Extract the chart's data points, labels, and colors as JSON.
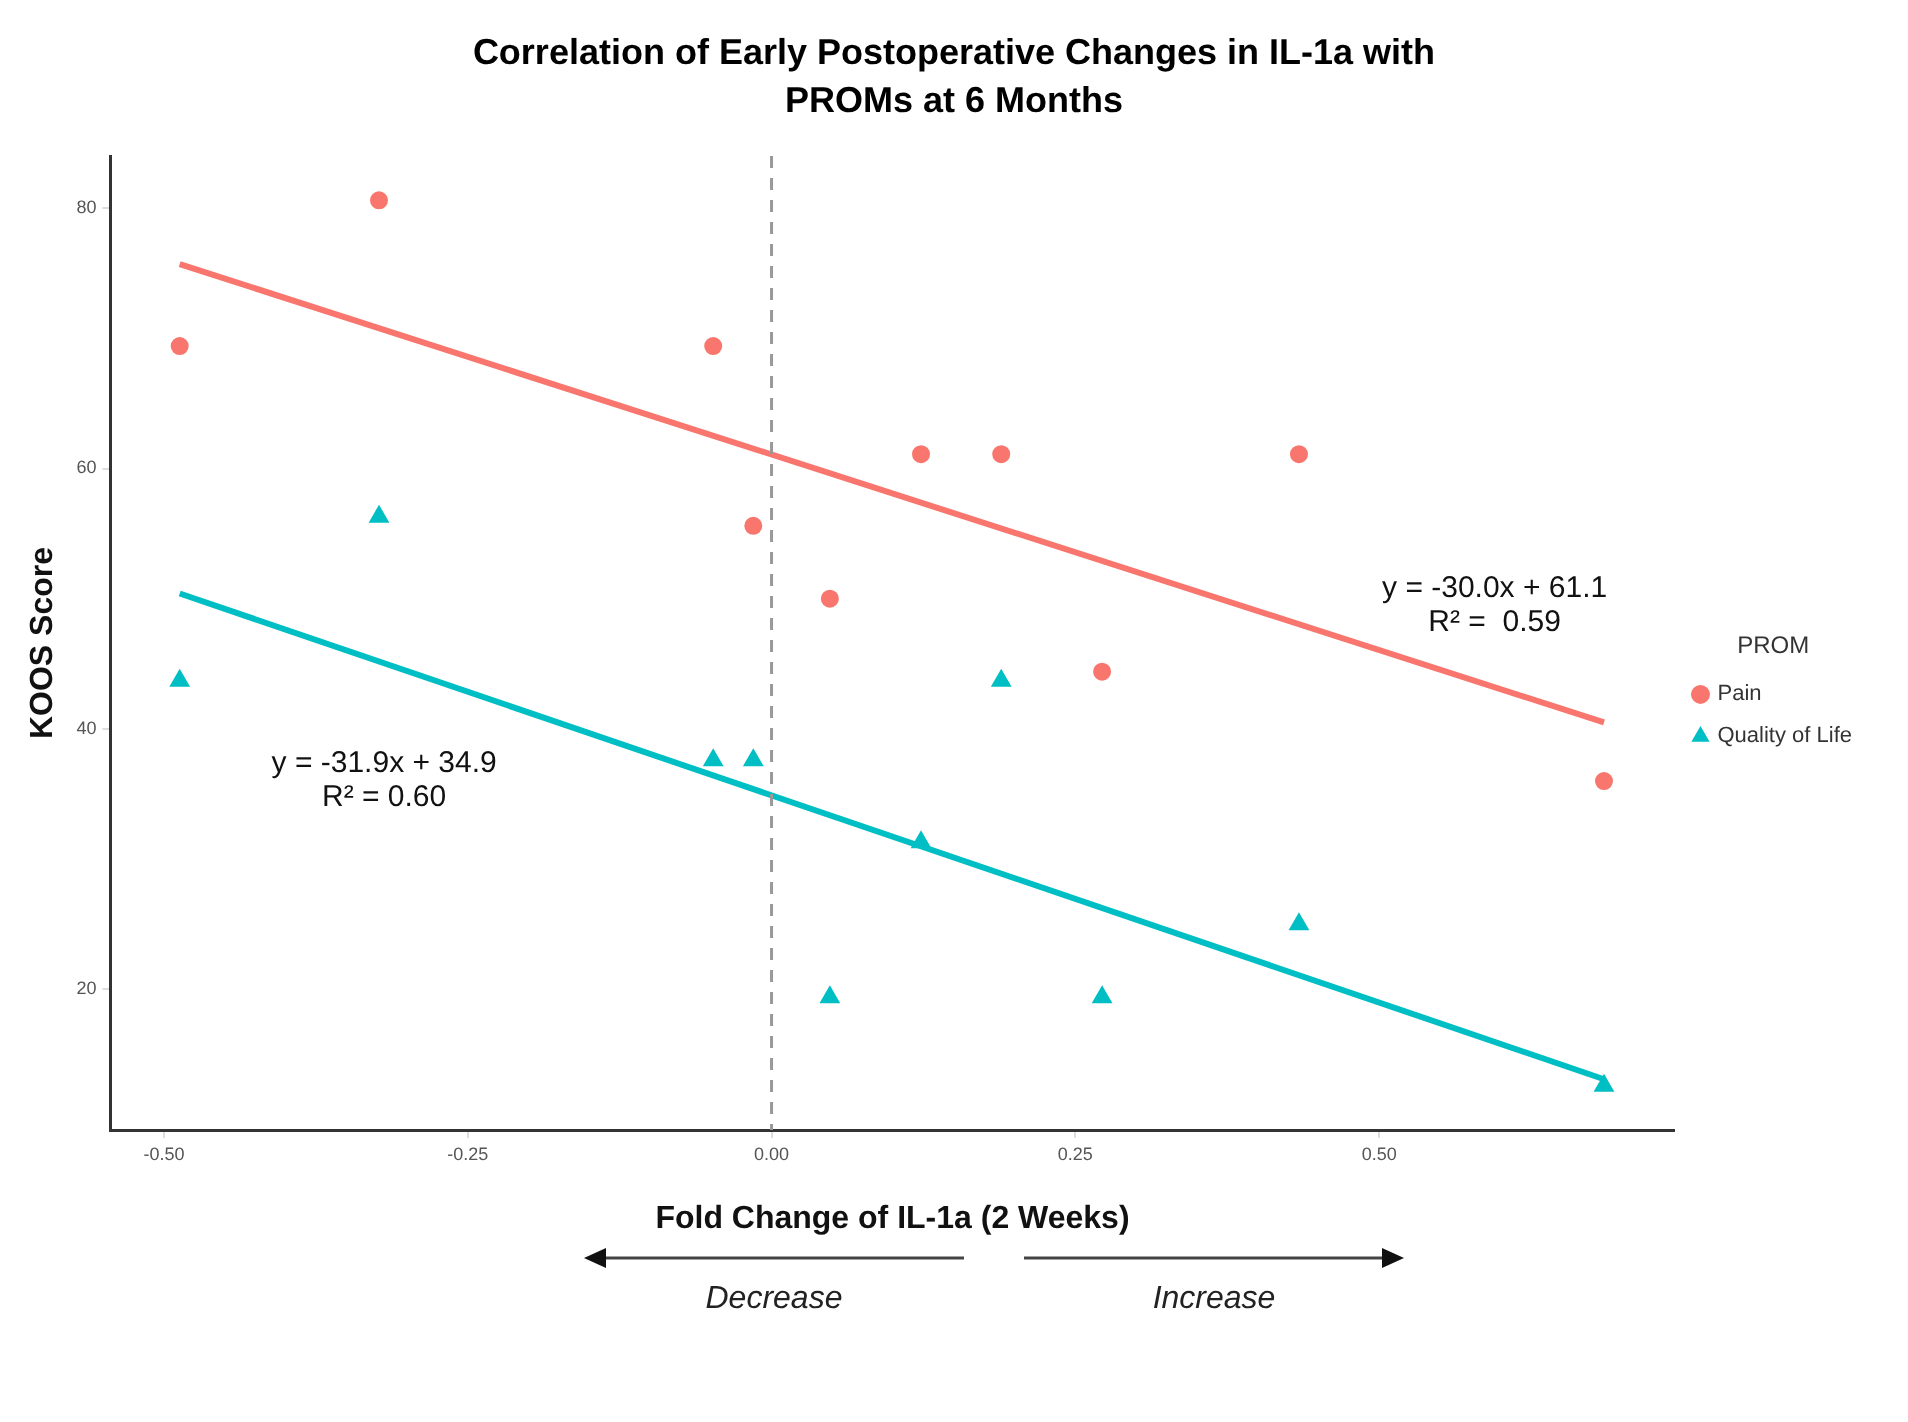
{
  "chart_data": {
    "type": "scatter",
    "title": "Correlation of Early Postoperative Changes in IL-1a with PROMs at 6 Months",
    "xlabel": "Fold Change of IL-1a (2 Weeks)",
    "ylabel": "KOOS Score",
    "legend_title": "PROM",
    "legend": "right",
    "grid": false,
    "xlim": [
      -0.544,
      0.743
    ],
    "xticks": [
      {
        "value": -0.5,
        "label": "-0.50"
      },
      {
        "value": -0.25,
        "label": "-0.25"
      },
      {
        "value": 0,
        "label": "0.00"
      },
      {
        "value": 0.25,
        "label": "0.25"
      },
      {
        "value": 0.5,
        "label": "0.50"
      }
    ],
    "ylim": [
      9.2,
      84
    ],
    "yticks": [
      20,
      40,
      60,
      80
    ],
    "series": [
      {
        "name": "Pain",
        "marker": "circle",
        "color": "#f8766d",
        "x": [
          -0.487,
          -0.323,
          -0.048,
          -0.015,
          0.048,
          0.123,
          0.189,
          0.272,
          0.434,
          0.685
        ],
        "values": [
          69.4,
          80.6,
          69.4,
          55.6,
          50.0,
          61.1,
          61.1,
          44.4,
          61.1,
          36.0
        ]
      },
      {
        "name": "Quality of Life",
        "marker": "triangle",
        "color": "#00bfc4",
        "x": [
          -0.487,
          -0.323,
          -0.048,
          -0.015,
          0.048,
          0.123,
          0.189,
          0.272,
          0.434,
          0.685
        ],
        "values": [
          43.7,
          56.3,
          37.6,
          37.6,
          19.4,
          31.3,
          43.7,
          19.4,
          25.0,
          12.6
        ]
      },
      {
        "type": "line",
        "marker": "none",
        "line_style": "solid",
        "color": "#f8766d",
        "x": [
          -0.487,
          0.685
        ],
        "values": [
          75.7,
          40.5
        ]
      },
      {
        "type": "line",
        "marker": "none",
        "line_style": "solid",
        "color": "#00bfc4",
        "x": [
          -0.487,
          0.685
        ],
        "values": [
          50.4,
          13.1
        ]
      }
    ],
    "ref_lines": [
      {
        "axis": "x",
        "value": 0,
        "color": "#999999",
        "line_style": "dashed"
      }
    ],
    "annotations": [
      "y = -30.0x + 61.1\nR² =  0.59",
      "y = -31.9x + 34.9\nR² = 0.60",
      "Decrease",
      "Increase"
    ]
  }
}
